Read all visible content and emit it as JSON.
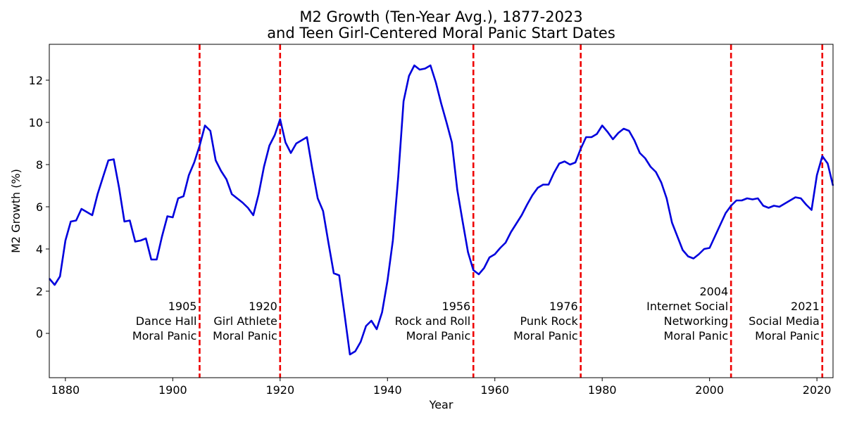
{
  "chart_data": {
    "type": "line",
    "title": [
      "M2 Growth (Ten-Year Avg.), 1877-2023",
      "and Teen Girl-Centered Moral Panic Start Dates"
    ],
    "xlabel": "Year",
    "ylabel": "M2 Growth (%)",
    "xlim": [
      1877,
      2023
    ],
    "ylim": [
      -2.1,
      13.7
    ],
    "xticks": [
      1880,
      1900,
      1920,
      1940,
      1960,
      1980,
      2000,
      2020
    ],
    "yticks": [
      0,
      2,
      4,
      6,
      8,
      10,
      12
    ],
    "grid": false,
    "series": [
      {
        "name": "M2 Growth (Ten-Year Avg.)",
        "color": "#0000dd",
        "points": [
          [
            1877,
            2.6
          ],
          [
            1878,
            2.3
          ],
          [
            1879,
            2.7
          ],
          [
            1880,
            4.4
          ],
          [
            1881,
            5.3
          ],
          [
            1882,
            5.35
          ],
          [
            1883,
            5.9
          ],
          [
            1884,
            5.75
          ],
          [
            1885,
            5.6
          ],
          [
            1886,
            6.6
          ],
          [
            1887,
            7.4
          ],
          [
            1888,
            8.2
          ],
          [
            1889,
            8.25
          ],
          [
            1890,
            6.9
          ],
          [
            1891,
            5.3
          ],
          [
            1892,
            5.35
          ],
          [
            1893,
            4.35
          ],
          [
            1894,
            4.4
          ],
          [
            1895,
            4.5
          ],
          [
            1896,
            3.5
          ],
          [
            1897,
            3.5
          ],
          [
            1898,
            4.6
          ],
          [
            1899,
            5.55
          ],
          [
            1900,
            5.5
          ],
          [
            1901,
            6.4
          ],
          [
            1902,
            6.5
          ],
          [
            1903,
            7.5
          ],
          [
            1904,
            8.1
          ],
          [
            1905,
            8.9
          ],
          [
            1906,
            9.85
          ],
          [
            1907,
            9.6
          ],
          [
            1908,
            8.2
          ],
          [
            1909,
            7.7
          ],
          [
            1910,
            7.3
          ],
          [
            1911,
            6.6
          ],
          [
            1912,
            6.4
          ],
          [
            1913,
            6.2
          ],
          [
            1914,
            5.95
          ],
          [
            1915,
            5.6
          ],
          [
            1916,
            6.6
          ],
          [
            1917,
            7.9
          ],
          [
            1918,
            8.9
          ],
          [
            1919,
            9.4
          ],
          [
            1920,
            10.15
          ],
          [
            1921,
            9.05
          ],
          [
            1922,
            8.55
          ],
          [
            1923,
            9.0
          ],
          [
            1924,
            9.15
          ],
          [
            1925,
            9.3
          ],
          [
            1926,
            7.8
          ],
          [
            1927,
            6.4
          ],
          [
            1928,
            5.8
          ],
          [
            1929,
            4.3
          ],
          [
            1930,
            2.85
          ],
          [
            1931,
            2.75
          ],
          [
            1932,
            0.9
          ],
          [
            1933,
            -1.0
          ],
          [
            1934,
            -0.85
          ],
          [
            1935,
            -0.4
          ],
          [
            1936,
            0.35
          ],
          [
            1937,
            0.6
          ],
          [
            1938,
            0.2
          ],
          [
            1939,
            1.0
          ],
          [
            1940,
            2.5
          ],
          [
            1941,
            4.4
          ],
          [
            1942,
            7.4
          ],
          [
            1943,
            11.0
          ],
          [
            1944,
            12.2
          ],
          [
            1945,
            12.7
          ],
          [
            1946,
            12.5
          ],
          [
            1947,
            12.55
          ],
          [
            1948,
            12.7
          ],
          [
            1949,
            11.9
          ],
          [
            1950,
            10.9
          ],
          [
            1951,
            10.0
          ],
          [
            1952,
            9.05
          ],
          [
            1953,
            6.8
          ],
          [
            1954,
            5.3
          ],
          [
            1955,
            3.85
          ],
          [
            1956,
            3.0
          ],
          [
            1957,
            2.8
          ],
          [
            1958,
            3.1
          ],
          [
            1959,
            3.6
          ],
          [
            1960,
            3.75
          ],
          [
            1961,
            4.05
          ],
          [
            1962,
            4.3
          ],
          [
            1963,
            4.8
          ],
          [
            1964,
            5.2
          ],
          [
            1965,
            5.6
          ],
          [
            1966,
            6.1
          ],
          [
            1967,
            6.55
          ],
          [
            1968,
            6.9
          ],
          [
            1969,
            7.05
          ],
          [
            1970,
            7.05
          ],
          [
            1971,
            7.6
          ],
          [
            1972,
            8.05
          ],
          [
            1973,
            8.15
          ],
          [
            1974,
            8.0
          ],
          [
            1975,
            8.1
          ],
          [
            1976,
            8.75
          ],
          [
            1977,
            9.3
          ],
          [
            1978,
            9.3
          ],
          [
            1979,
            9.45
          ],
          [
            1980,
            9.85
          ],
          [
            1981,
            9.55
          ],
          [
            1982,
            9.2
          ],
          [
            1983,
            9.5
          ],
          [
            1984,
            9.7
          ],
          [
            1985,
            9.6
          ],
          [
            1986,
            9.15
          ],
          [
            1987,
            8.55
          ],
          [
            1988,
            8.3
          ],
          [
            1989,
            7.9
          ],
          [
            1990,
            7.65
          ],
          [
            1991,
            7.15
          ],
          [
            1992,
            6.4
          ],
          [
            1993,
            5.25
          ],
          [
            1994,
            4.6
          ],
          [
            1995,
            3.95
          ],
          [
            1996,
            3.65
          ],
          [
            1997,
            3.55
          ],
          [
            1998,
            3.75
          ],
          [
            1999,
            4.0
          ],
          [
            2000,
            4.05
          ],
          [
            2001,
            4.6
          ],
          [
            2002,
            5.15
          ],
          [
            2003,
            5.7
          ],
          [
            2004,
            6.05
          ],
          [
            2005,
            6.3
          ],
          [
            2006,
            6.3
          ],
          [
            2007,
            6.4
          ],
          [
            2008,
            6.35
          ],
          [
            2009,
            6.4
          ],
          [
            2010,
            6.05
          ],
          [
            2011,
            5.95
          ],
          [
            2012,
            6.05
          ],
          [
            2013,
            6.0
          ],
          [
            2014,
            6.15
          ],
          [
            2015,
            6.3
          ],
          [
            2016,
            6.45
          ],
          [
            2017,
            6.4
          ],
          [
            2018,
            6.1
          ],
          [
            2019,
            5.85
          ],
          [
            2020,
            7.5
          ],
          [
            2021,
            8.4
          ],
          [
            2022,
            8.05
          ],
          [
            2023,
            7.0
          ]
        ]
      }
    ],
    "vlines": {
      "color": "#ee0000",
      "style": "dashed",
      "items": [
        {
          "x": 1905,
          "lines": [
            "1905",
            "Dance Hall",
            "Moral Panic"
          ]
        },
        {
          "x": 1920,
          "lines": [
            "1920",
            "Girl Athlete",
            "Moral Panic"
          ]
        },
        {
          "x": 1956,
          "lines": [
            "1956",
            "Rock and Roll",
            "Moral Panic"
          ]
        },
        {
          "x": 1976,
          "lines": [
            "1976",
            "Punk Rock",
            "Moral Panic"
          ]
        },
        {
          "x": 2004,
          "lines": [
            "2004",
            "Internet Social",
            "Networking",
            "Moral Panic"
          ]
        },
        {
          "x": 2021,
          "lines": [
            "2021",
            "Social Media",
            "Moral Panic"
          ]
        }
      ]
    }
  }
}
